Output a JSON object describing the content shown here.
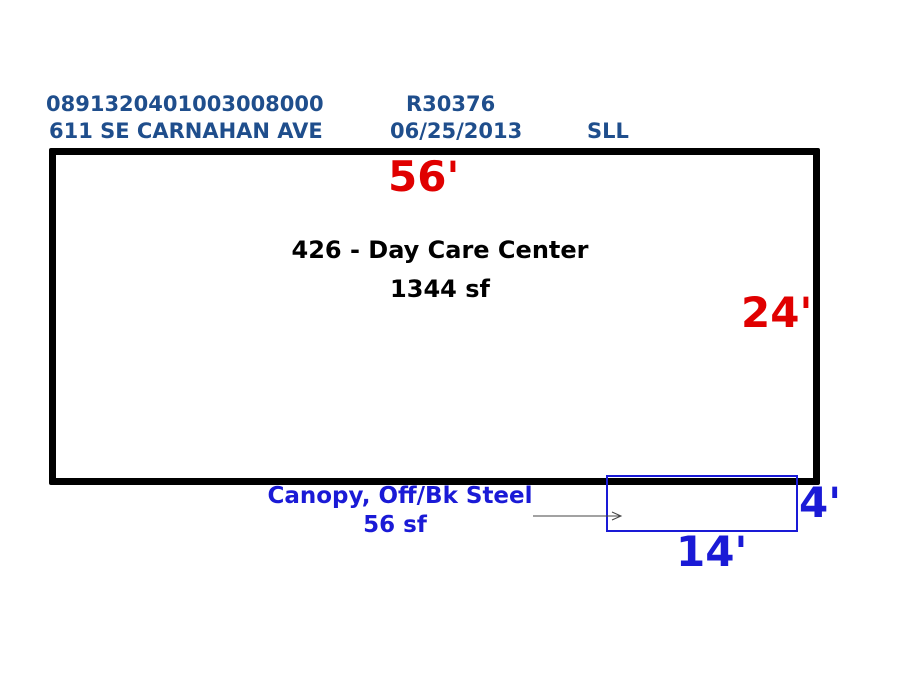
{
  "header": {
    "parcel_id": "0891320401003008000",
    "record": "R30376",
    "address": "611 SE CARNAHAN AVE",
    "date": "06/25/2013",
    "initials": "SLL"
  },
  "main_area": {
    "width_label": "56'",
    "depth_label": "24'",
    "use": "426 - Day Care Center",
    "area": "1344 sf"
  },
  "canopy": {
    "description": "Canopy, Off/Bk Steel",
    "area": "56 sf",
    "width_label": "14'",
    "depth_label": "4'"
  },
  "colors": {
    "header": "#1f4e8c",
    "main_dimension": "#e00000",
    "canopy": "#1a1ad6",
    "outline": "#000000"
  }
}
